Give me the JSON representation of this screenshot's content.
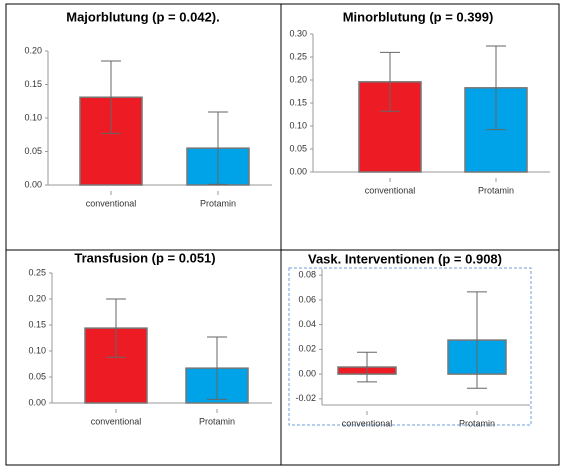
{
  "chart_data": [
    {
      "type": "bar",
      "title": "Majorblutung (p = 0.042).",
      "categories": [
        "conventional",
        "Protamin"
      ],
      "values": [
        0.131,
        0.055
      ],
      "errors": [
        0.054,
        0.054
      ],
      "colors": [
        "#ed1c24",
        "#00a2e8"
      ],
      "ylim": [
        0,
        0.2
      ],
      "yticks": [
        {
          "value": 0,
          "label": "0.00"
        },
        {
          "value": 0.05,
          "label": "0.05"
        },
        {
          "value": 0.1,
          "label": "0.10"
        },
        {
          "value": 0.15,
          "label": "0.15"
        },
        {
          "value": 0.2,
          "label": "0.20"
        }
      ]
    },
    {
      "type": "bar",
      "title": "Minorblutung (p = 0.399)",
      "categories": [
        "conventional",
        "Protamin"
      ],
      "values": [
        0.196,
        0.183
      ],
      "errors": [
        0.064,
        0.091
      ],
      "colors": [
        "#ed1c24",
        "#00a2e8"
      ],
      "ylim": [
        0,
        0.3
      ],
      "yticks": [
        {
          "value": 0,
          "label": "0.00"
        },
        {
          "value": 0.05,
          "label": "0.05"
        },
        {
          "value": 0.1,
          "label": "0.10"
        },
        {
          "value": 0.15,
          "label": "0.15"
        },
        {
          "value": 0.2,
          "label": "0.20"
        },
        {
          "value": 0.25,
          "label": "0.25"
        },
        {
          "value": 0.3,
          "label": "0.30"
        }
      ]
    },
    {
      "type": "bar",
      "title": "Transfusion (p = 0.051)",
      "categories": [
        "conventional",
        "Protamin"
      ],
      "values": [
        0.144,
        0.067
      ],
      "errors": [
        0.056,
        0.06
      ],
      "colors": [
        "#ed1c24",
        "#00a2e8"
      ],
      "ylim": [
        0,
        0.25
      ],
      "yticks": [
        {
          "value": 0,
          "label": "0.00"
        },
        {
          "value": 0.05,
          "label": "0.05"
        },
        {
          "value": 0.1,
          "label": "0.10"
        },
        {
          "value": 0.15,
          "label": "0.15"
        },
        {
          "value": 0.2,
          "label": "0.20"
        },
        {
          "value": 0.25,
          "label": "0.25"
        }
      ]
    },
    {
      "type": "bar",
      "title": "Vask. Interventionen (p = 0.908)",
      "categories": [
        "conventional",
        "Protamin"
      ],
      "values": [
        0.0057,
        0.0275
      ],
      "errors": [
        0.012,
        0.039
      ],
      "colors": [
        "#ed1c24",
        "#00a2e8"
      ],
      "ylim": [
        -0.025,
        0.085
      ],
      "yticks": [
        {
          "value": -0.02,
          "label": "-0.02"
        },
        {
          "value": 0,
          "label": "0.00"
        },
        {
          "value": 0.02,
          "label": "0.02"
        },
        {
          "value": 0.04,
          "label": "0.04"
        },
        {
          "value": 0.06,
          "label": "0.06"
        },
        {
          "value": 0.08,
          "label": "0.08"
        }
      ]
    }
  ]
}
